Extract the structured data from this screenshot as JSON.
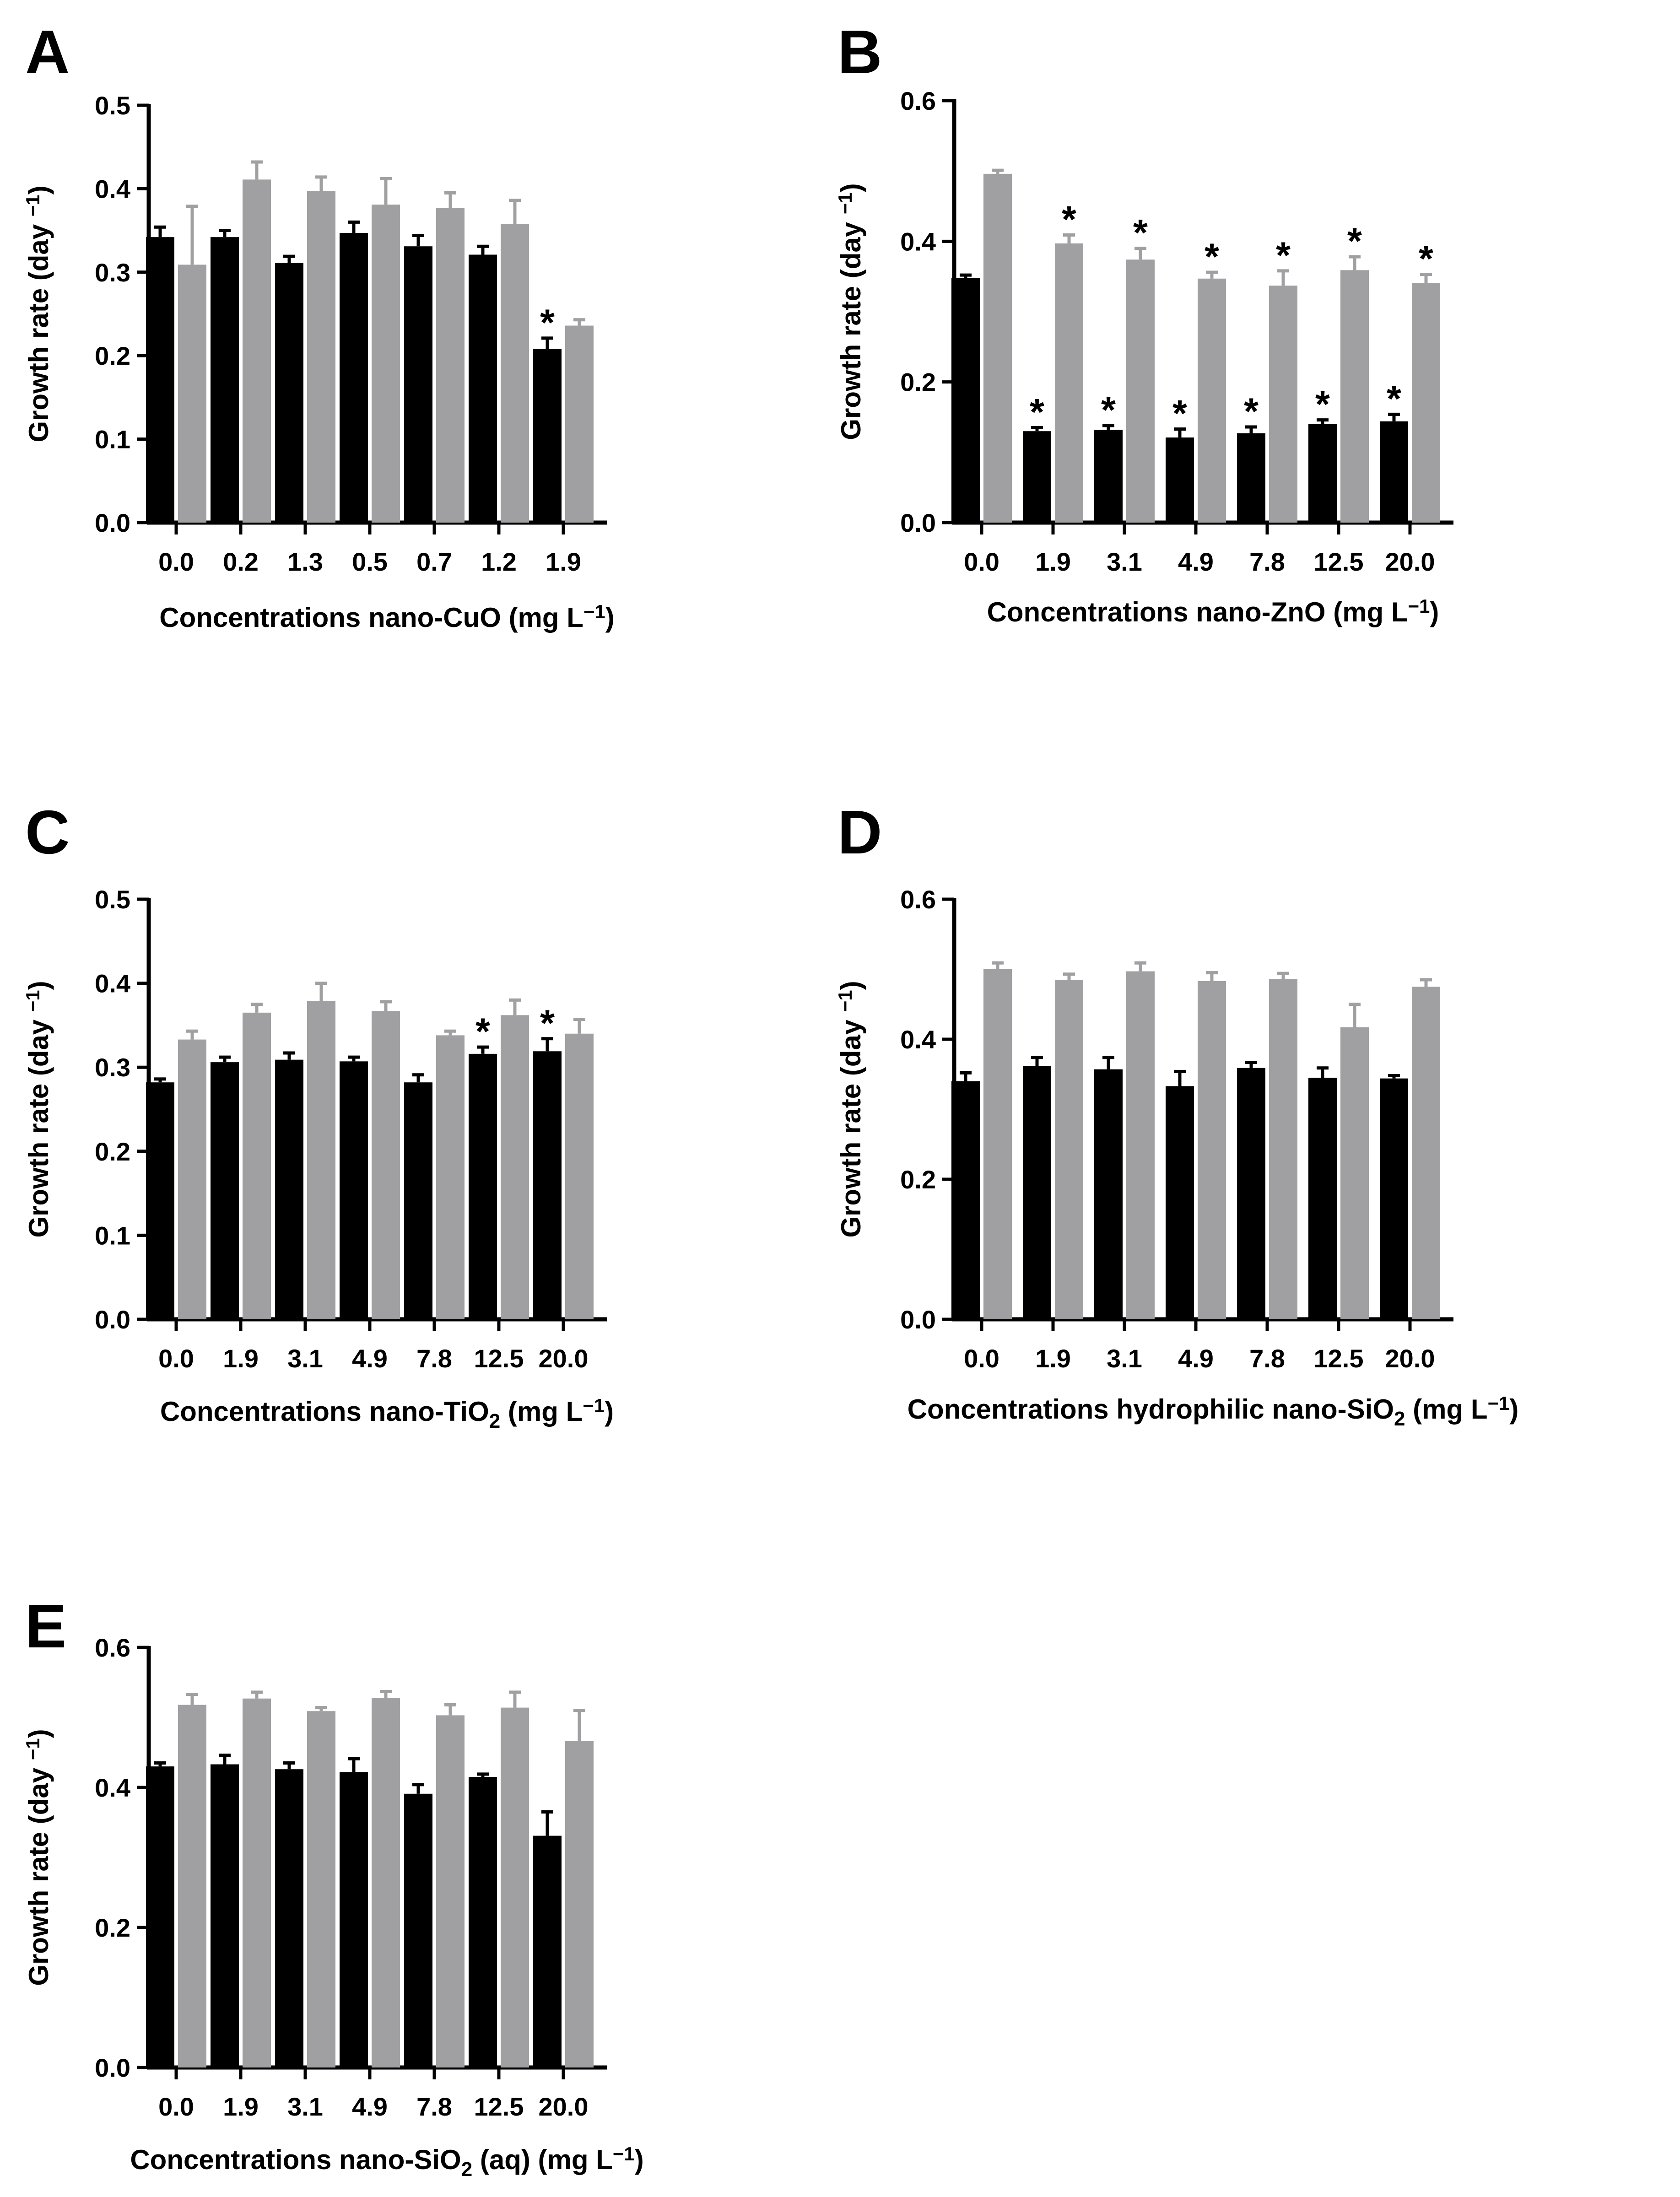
{
  "figure": {
    "colors": {
      "series_a": "#000000",
      "series_b": "#a0a0a2",
      "axis": "#000000"
    }
  },
  "chart_data": [
    {
      "type": "bar",
      "panel": "A",
      "xlabel": "Concentrations nano-CuO (mg L−1)",
      "xlabel_parts": {
        "pre": "Concentrations nano-CuO (mg L",
        "sup": "−1",
        "post": ")"
      },
      "ylabel": "Growth rate (day −1)",
      "ylabel_parts": {
        "pre": "Growth rate (day ",
        "sup": "−1",
        "post": ")"
      },
      "ylim": [
        0,
        0.5
      ],
      "yticks": [
        0.0,
        0.1,
        0.2,
        0.3,
        0.4,
        0.5
      ],
      "yticks_labels": [
        "0.0",
        "0.1",
        "0.2",
        "0.3",
        "0.4",
        "0.5"
      ],
      "categories": [
        "0.0",
        "0.2",
        "1.3",
        "0.5",
        "0.7",
        "1.2",
        "1.9"
      ],
      "series": [
        {
          "name": "series 1 (black)",
          "values": [
            0.342,
            0.342,
            0.311,
            0.347,
            0.331,
            0.321,
            0.208
          ],
          "errors": [
            0.012,
            0.008,
            0.008,
            0.013,
            0.013,
            0.01,
            0.013
          ],
          "significant": [
            false,
            false,
            false,
            false,
            false,
            false,
            true
          ]
        },
        {
          "name": "series 2 (grey)",
          "values": [
            0.309,
            0.411,
            0.397,
            0.381,
            0.377,
            0.358,
            0.236
          ],
          "errors": [
            0.07,
            0.021,
            0.017,
            0.031,
            0.018,
            0.028,
            0.007
          ],
          "significant": [
            false,
            false,
            false,
            false,
            false,
            false,
            false
          ]
        }
      ]
    },
    {
      "type": "bar",
      "panel": "B",
      "xlabel": "Concentrations nano-ZnO (mg L−1)",
      "xlabel_parts": {
        "pre": "Concentrations nano-ZnO (mg L",
        "sup": "−1",
        "post": ")"
      },
      "ylabel": "Growth rate (day −1)",
      "ylabel_parts": {
        "pre": "Growth rate (day ",
        "sup": "−1",
        "post": ")"
      },
      "ylim": [
        0,
        0.6
      ],
      "yticks": [
        0.0,
        0.2,
        0.4,
        0.6
      ],
      "yticks_labels": [
        "0.0",
        "0.2",
        "0.4",
        "0.6"
      ],
      "categories": [
        "0.0",
        "1.9",
        "3.1",
        "4.9",
        "7.8",
        "12.5",
        "20.0"
      ],
      "series": [
        {
          "name": "series 1 (black)",
          "values": [
            0.348,
            0.13,
            0.132,
            0.121,
            0.127,
            0.14,
            0.144
          ],
          "errors": [
            0.004,
            0.005,
            0.006,
            0.012,
            0.009,
            0.006,
            0.01
          ],
          "significant": [
            false,
            true,
            true,
            true,
            true,
            true,
            true
          ]
        },
        {
          "name": "series 2 (grey)",
          "values": [
            0.496,
            0.397,
            0.374,
            0.347,
            0.337,
            0.359,
            0.341
          ],
          "errors": [
            0.005,
            0.012,
            0.016,
            0.009,
            0.021,
            0.019,
            0.012
          ],
          "significant": [
            false,
            true,
            true,
            true,
            true,
            true,
            true
          ]
        }
      ]
    },
    {
      "type": "bar",
      "panel": "C",
      "xlabel": "Concentrations nano-TiO2 (mg L−1)",
      "xlabel_parts": {
        "pre": "Concentrations nano-TiO",
        "sub": "2",
        "mid": " (mg L",
        "sup": "−1",
        "post": ")"
      },
      "ylabel": "Growth rate (day −1)",
      "ylabel_parts": {
        "pre": "Growth rate (day ",
        "sup": "−1",
        "post": ")"
      },
      "ylim": [
        0,
        0.5
      ],
      "yticks": [
        0.0,
        0.1,
        0.2,
        0.3,
        0.4,
        0.5
      ],
      "yticks_labels": [
        "0.0",
        "0.1",
        "0.2",
        "0.3",
        "0.4",
        "0.5"
      ],
      "categories": [
        "0.0",
        "1.9",
        "3.1",
        "4.9",
        "7.8",
        "12.5",
        "20.0"
      ],
      "series": [
        {
          "name": "series 1 (black)",
          "values": [
            0.282,
            0.306,
            0.309,
            0.307,
            0.282,
            0.316,
            0.319
          ],
          "errors": [
            0.004,
            0.006,
            0.008,
            0.005,
            0.009,
            0.008,
            0.015
          ],
          "significant": [
            false,
            false,
            false,
            false,
            false,
            true,
            true
          ]
        },
        {
          "name": "series 2 (grey)",
          "values": [
            0.333,
            0.365,
            0.379,
            0.367,
            0.338,
            0.362,
            0.34
          ],
          "errors": [
            0.01,
            0.01,
            0.021,
            0.011,
            0.005,
            0.018,
            0.017
          ],
          "significant": [
            false,
            false,
            false,
            false,
            false,
            false,
            false
          ]
        }
      ]
    },
    {
      "type": "bar",
      "panel": "D",
      "xlabel": "Concentrations hydrophilic nano-SiO2 (mg L−1)",
      "xlabel_parts": {
        "pre": "Concentrations hydrophilic nano-SiO",
        "sub": "2",
        "mid": " (mg L",
        "sup": "−1",
        "post": ")"
      },
      "ylabel": "Growth rate (day −1)",
      "ylabel_parts": {
        "pre": "Growth rate (day ",
        "sup": "−1",
        "post": ")"
      },
      "ylim": [
        0,
        0.6
      ],
      "yticks": [
        0.0,
        0.2,
        0.4,
        0.6
      ],
      "yticks_labels": [
        "0.0",
        "0.2",
        "0.4",
        "0.6"
      ],
      "categories": [
        "0.0",
        "1.9",
        "3.1",
        "4.9",
        "7.8",
        "12.5",
        "20.0"
      ],
      "series": [
        {
          "name": "series 1 (black)",
          "values": [
            0.34,
            0.362,
            0.357,
            0.333,
            0.359,
            0.345,
            0.344
          ],
          "errors": [
            0.012,
            0.012,
            0.017,
            0.021,
            0.008,
            0.014,
            0.004
          ],
          "significant": [
            false,
            false,
            false,
            false,
            false,
            false,
            false
          ]
        },
        {
          "name": "series 2 (grey)",
          "values": [
            0.5,
            0.485,
            0.497,
            0.483,
            0.486,
            0.417,
            0.475
          ],
          "errors": [
            0.009,
            0.008,
            0.012,
            0.012,
            0.008,
            0.033,
            0.01
          ],
          "significant": [
            false,
            false,
            false,
            false,
            false,
            false,
            false
          ]
        }
      ]
    },
    {
      "type": "bar",
      "panel": "E",
      "xlabel": "Concentrations nano-SiO2 (aq) (mg L−1)",
      "xlabel_parts": {
        "pre": "Concentrations nano-SiO",
        "sub": "2",
        "mid": " (aq) (mg L",
        "sup": "−1",
        "post": ")"
      },
      "ylabel": "Growth rate (day −1)",
      "ylabel_parts": {
        "pre": "Growth rate (day ",
        "sup": "−1",
        "post": ")"
      },
      "ylim": [
        0,
        0.6
      ],
      "yticks": [
        0.0,
        0.2,
        0.4,
        0.6
      ],
      "yticks_labels": [
        "0.0",
        "0.2",
        "0.4",
        "0.6"
      ],
      "categories": [
        "0.0",
        "1.9",
        "3.1",
        "4.9",
        "7.8",
        "12.5",
        "20.0"
      ],
      "series": [
        {
          "name": "series 1 (black)",
          "values": [
            0.43,
            0.433,
            0.426,
            0.422,
            0.391,
            0.415,
            0.331
          ],
          "errors": [
            0.005,
            0.013,
            0.009,
            0.019,
            0.013,
            0.004,
            0.034
          ],
          "significant": [
            false,
            false,
            false,
            false,
            false,
            false,
            false
          ]
        },
        {
          "name": "series 2 (grey)",
          "values": [
            0.518,
            0.527,
            0.509,
            0.528,
            0.503,
            0.514,
            0.466
          ],
          "errors": [
            0.015,
            0.009,
            0.005,
            0.009,
            0.015,
            0.022,
            0.044
          ],
          "significant": [
            false,
            false,
            false,
            false,
            false,
            false,
            false
          ]
        }
      ]
    }
  ]
}
